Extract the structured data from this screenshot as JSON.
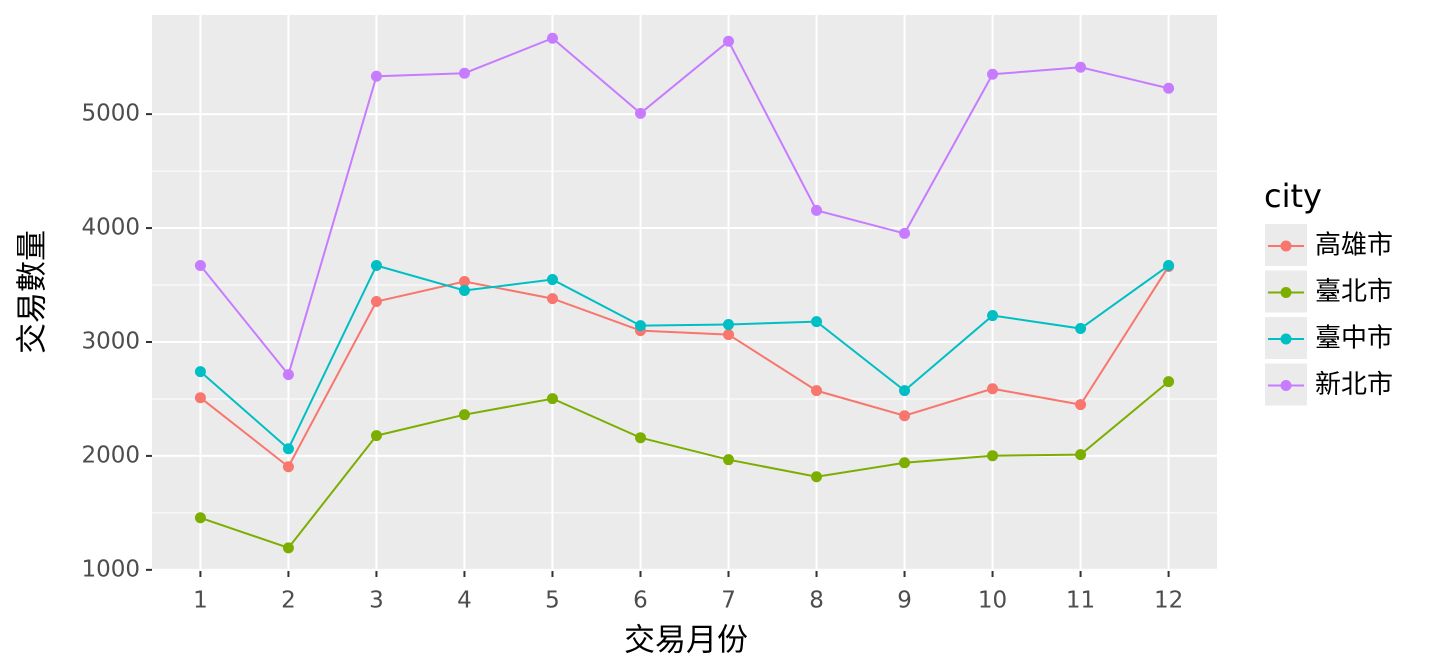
{
  "chart_data": {
    "type": "line",
    "x_label": "交易月份",
    "y_label": "交易數量",
    "x": [
      1,
      2,
      3,
      4,
      5,
      6,
      7,
      8,
      9,
      10,
      11,
      12
    ],
    "xlim": [
      0.45,
      12.55
    ],
    "xticks": [
      1,
      2,
      3,
      4,
      5,
      6,
      7,
      8,
      9,
      10,
      11,
      12
    ],
    "ylim": [
      990,
      5870
    ],
    "yticks": [
      1000,
      2000,
      3000,
      4000,
      5000
    ],
    "grid": true,
    "legend_title": "city",
    "legend_position": "right",
    "series": [
      {
        "name": "高雄市",
        "color": "#F8766D",
        "values": [
          2511,
          1905,
          3355,
          3531,
          3381,
          3100,
          3065,
          2573,
          2353,
          2590,
          2450,
          3663
        ]
      },
      {
        "name": "臺北市",
        "color": "#7CAE00",
        "values": [
          1457,
          1193,
          2178,
          2362,
          2503,
          2160,
          1967,
          1817,
          1940,
          2002,
          2011,
          2652
        ]
      },
      {
        "name": "臺中市",
        "color": "#00BFC4",
        "values": [
          2740,
          2063,
          3671,
          3452,
          3548,
          3144,
          3153,
          3179,
          2573,
          3232,
          3118,
          3671
        ]
      },
      {
        "name": "新北市",
        "color": "#C77CFF",
        "values": [
          3671,
          2714,
          5332,
          5359,
          5666,
          5007,
          5640,
          4155,
          3953,
          5350,
          5411,
          5227
        ]
      }
    ]
  }
}
